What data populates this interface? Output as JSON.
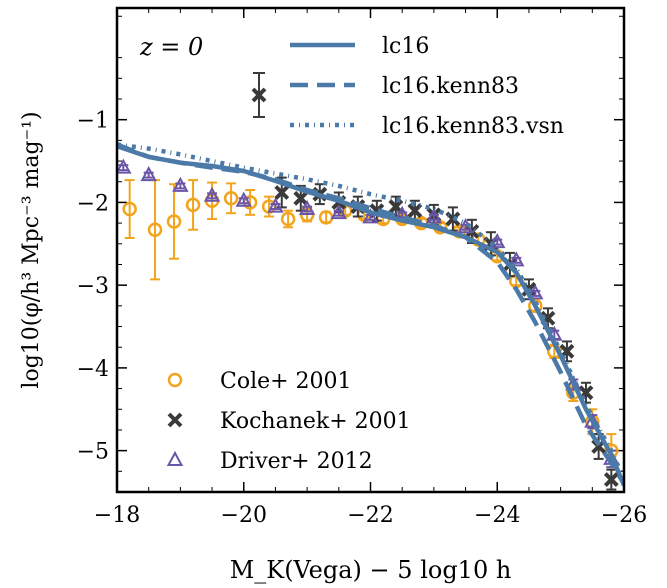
{
  "chart_data": {
    "type": "line",
    "annotation": "z = 0",
    "xlabel": "M_K(Vega) − 5 log10 h",
    "ylabel": "log10(φ/h³ Mpc⁻³ mag⁻¹)",
    "xlim": [
      -18,
      -26
    ],
    "ylim": [
      -5.5,
      0.35
    ],
    "xticks": [
      -18,
      -20,
      -22,
      -24,
      -26
    ],
    "yticks": [
      -1,
      -2,
      -3,
      -4,
      -5
    ],
    "xtick_labels": [
      "−18",
      "−20",
      "−22",
      "−24",
      "−26"
    ],
    "ytick_labels": [
      "−1",
      "−2",
      "−3",
      "−4",
      "−5"
    ],
    "grid": false,
    "legend_lines": {
      "placement": "top-right",
      "entries": [
        "lc16",
        "lc16.kenn83",
        "lc16.kenn83.vsn"
      ]
    },
    "legend_points": {
      "placement": "bottom-left",
      "entries": [
        "Cole+ 2001",
        "Kochanek+ 2001",
        "Driver+ 2012"
      ]
    },
    "colors": {
      "model": "#4b7aa8",
      "cole": "#f2a51c",
      "kochanek": "#3a3a3a",
      "driver": "#6a55a8"
    },
    "series": [
      {
        "name": "lc16",
        "style": "solid",
        "x": [
          -18,
          -18.5,
          -19,
          -19.5,
          -20,
          -20.5,
          -21,
          -21.5,
          -22,
          -22.5,
          -23,
          -23.5,
          -24,
          -24.3,
          -24.6,
          -25,
          -25.4,
          -25.8,
          -26
        ],
        "y": [
          -1.32,
          -1.45,
          -1.52,
          -1.56,
          -1.62,
          -1.74,
          -1.87,
          -1.98,
          -2.12,
          -2.22,
          -2.3,
          -2.42,
          -2.6,
          -2.85,
          -3.25,
          -3.85,
          -4.5,
          -5.05,
          -5.42
        ]
      },
      {
        "name": "lc16.kenn83",
        "style": "dashed",
        "x": [
          -18,
          -18.5,
          -19,
          -19.5,
          -20,
          -20.5,
          -21,
          -21.5,
          -22,
          -22.5,
          -23,
          -23.5,
          -24,
          -24.3,
          -24.6,
          -25,
          -25.4,
          -25.8,
          -26
        ],
        "y": [
          -1.3,
          -1.45,
          -1.52,
          -1.58,
          -1.63,
          -1.72,
          -1.85,
          -1.95,
          -2.07,
          -2.18,
          -2.28,
          -2.42,
          -2.72,
          -3.05,
          -3.45,
          -4.05,
          -4.7,
          -5.15,
          -5.4
        ]
      },
      {
        "name": "lc16.kenn83.vsn",
        "style": "dashdot",
        "x": [
          -18,
          -18.5,
          -19,
          -19.5,
          -20,
          -20.5,
          -21,
          -21.5,
          -22,
          -22.5,
          -23,
          -23.5,
          -24,
          -24.3,
          -24.6,
          -25,
          -25.4,
          -25.8,
          -26
        ],
        "y": [
          -1.3,
          -1.35,
          -1.42,
          -1.5,
          -1.58,
          -1.65,
          -1.72,
          -1.8,
          -1.9,
          -1.98,
          -2.08,
          -2.25,
          -2.55,
          -2.8,
          -3.2,
          -3.8,
          -4.45,
          -5.0,
          -5.35
        ]
      },
      {
        "name": "Cole+ 2001",
        "marker": "circle",
        "x": [
          -18.2,
          -18.6,
          -18.9,
          -19.2,
          -19.5,
          -19.8,
          -20.1,
          -20.4,
          -20.7,
          -21.0,
          -21.3,
          -21.6,
          -21.9,
          -22.2,
          -22.5,
          -22.8,
          -23.1,
          -23.4,
          -23.7,
          -24.0,
          -24.3,
          -24.6,
          -24.9,
          -25.2,
          -25.5,
          -25.8
        ],
        "y": [
          -2.08,
          -2.33,
          -2.23,
          -2.03,
          -1.98,
          -1.95,
          -2.0,
          -2.05,
          -2.2,
          -2.15,
          -2.18,
          -2.1,
          -2.15,
          -2.2,
          -2.2,
          -2.25,
          -2.3,
          -2.35,
          -2.45,
          -2.65,
          -2.95,
          -3.25,
          -3.8,
          -4.3,
          -4.65,
          -5.0
        ],
        "err": [
          0.35,
          0.6,
          0.45,
          0.3,
          0.22,
          0.18,
          0.15,
          0.12,
          0.1,
          0.08,
          0.06,
          0.05,
          0.05,
          0.05,
          0.05,
          0.05,
          0.05,
          0.05,
          0.05,
          0.05,
          0.05,
          0.06,
          0.08,
          0.1,
          0.15,
          0.2
        ]
      },
      {
        "name": "Kochanek+ 2001",
        "marker": "x",
        "x": [
          -20.6,
          -20.9,
          -21.2,
          -21.5,
          -21.8,
          -22.1,
          -22.4,
          -22.7,
          -23.0,
          -23.3,
          -23.6,
          -23.9,
          -24.2,
          -24.5,
          -24.8,
          -25.1,
          -25.4,
          -25.6,
          -25.8
        ],
        "y": [
          -1.88,
          -1.95,
          -1.9,
          -2.0,
          -2.05,
          -2.1,
          -2.05,
          -2.1,
          -2.15,
          -2.2,
          -2.35,
          -2.5,
          -2.75,
          -3.05,
          -3.4,
          -3.8,
          -4.3,
          -4.95,
          -5.35
        ],
        "err": [
          0.18,
          0.15,
          0.12,
          0.12,
          0.12,
          0.12,
          0.12,
          0.12,
          0.12,
          0.14,
          0.14,
          0.14,
          0.14,
          0.12,
          0.12,
          0.12,
          0.12,
          0.15,
          0.12
        ]
      },
      {
        "name": "Driver+ 2012",
        "marker": "triangle",
        "x": [
          -18.1,
          -18.5,
          -19.0,
          -19.5,
          -20.0,
          -20.5,
          -21.0,
          -21.5,
          -22.0,
          -22.5,
          -23.0,
          -23.5,
          -24.0,
          -24.3,
          -24.6,
          -24.9,
          -25.2,
          -25.5,
          -25.8
        ],
        "y": [
          -1.58,
          -1.67,
          -1.8,
          -1.92,
          -1.98,
          -2.05,
          -2.08,
          -2.13,
          -2.18,
          -2.15,
          -2.18,
          -2.3,
          -2.48,
          -2.7,
          -3.1,
          -3.6,
          -4.2,
          -4.65,
          -5.1
        ],
        "err": [
          0.03,
          0.03,
          0.03,
          0.03,
          0.03,
          0.03,
          0.03,
          0.03,
          0.03,
          0.03,
          0.03,
          0.03,
          0.03,
          0.03,
          0.03,
          0.05,
          0.06,
          0.08,
          0.1
        ]
      }
    ]
  }
}
